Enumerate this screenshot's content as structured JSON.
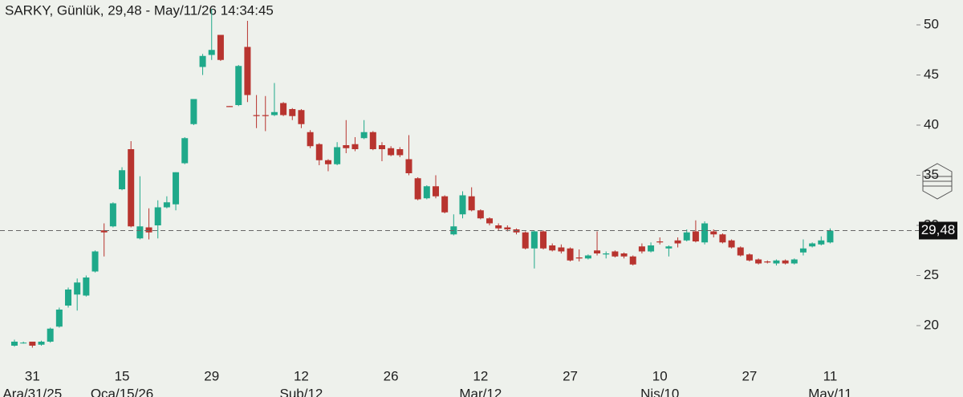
{
  "chart_data": {
    "type": "candlestick",
    "title": "SARKY,  Günlük, 29,48 - May/11/26 14:34:45",
    "categories": [
      null,
      null,
      "31",
      null,
      null,
      null,
      null,
      null,
      null,
      null,
      null,
      null,
      "15",
      null,
      null,
      null,
      null,
      null,
      null,
      null,
      null,
      null,
      "29",
      null,
      null,
      null,
      null,
      null,
      null,
      null,
      null,
      null,
      "12",
      null,
      null,
      null,
      null,
      null,
      null,
      null,
      null,
      null,
      "26",
      null,
      null,
      null,
      null,
      null,
      null,
      null,
      null,
      null,
      "12",
      null,
      null,
      null,
      null,
      null,
      null,
      null,
      null,
      null,
      "27",
      null,
      null,
      null,
      null,
      null,
      null,
      null,
      null,
      null,
      "10",
      null,
      null,
      null,
      null,
      null,
      null,
      null,
      null,
      null,
      "27",
      null,
      null,
      null,
      null,
      null,
      null,
      null,
      null,
      "11"
    ],
    "category_months": [
      null,
      null,
      "Ara/31/25",
      null,
      null,
      null,
      null,
      null,
      null,
      null,
      null,
      null,
      "Oca/15/26",
      null,
      null,
      null,
      null,
      null,
      null,
      null,
      null,
      null,
      null,
      null,
      null,
      null,
      null,
      null,
      null,
      null,
      null,
      null,
      "Şub/12",
      null,
      null,
      null,
      null,
      null,
      null,
      null,
      null,
      null,
      null,
      null,
      null,
      null,
      null,
      null,
      null,
      null,
      null,
      null,
      "Mar/12",
      null,
      null,
      null,
      null,
      null,
      null,
      null,
      null,
      null,
      null,
      null,
      null,
      null,
      null,
      null,
      null,
      null,
      null,
      null,
      "Nis/10",
      null,
      null,
      null,
      null,
      null,
      null,
      null,
      null,
      null,
      null,
      null,
      null,
      null,
      null,
      null,
      null,
      null,
      null,
      "May/11"
    ],
    "open": [
      18.0,
      18.3,
      18.4,
      18.1,
      18.4,
      19.9,
      22.0,
      23.1,
      23.0,
      25.4,
      29.5,
      29.9,
      33.6,
      37.6,
      28.7,
      29.8,
      30.0,
      31.8,
      32.1,
      36.2,
      40.1,
      45.8,
      47.0,
      49.0,
      41.9,
      42.0,
      47.8,
      41.0,
      41.0,
      41.0,
      42.2,
      41.6,
      41.5,
      39.3,
      38.1,
      36.5,
      36.1,
      38.0,
      38.1,
      38.7,
      39.3,
      38.0,
      37.7,
      37.6,
      36.6,
      34.7,
      32.7,
      33.9,
      32.9,
      29.1,
      31.1,
      32.9,
      31.5,
      30.7,
      30.0,
      29.8,
      29.6,
      29.3,
      27.7,
      29.4,
      28.0,
      27.8,
      27.7,
      26.8,
      26.7,
      27.5,
      27.1,
      27.4,
      27.2,
      26.9,
      27.9,
      27.4,
      28.4,
      27.7,
      28.5,
      28.5,
      29.4,
      28.3,
      29.4,
      29.1,
      28.5,
      27.8,
      27.1,
      26.6,
      26.4,
      26.2,
      26.5,
      26.2,
      27.3,
      27.9,
      28.1,
      28.3
    ],
    "high": [
      18.6,
      18.4,
      18.4,
      18.5,
      19.8,
      21.8,
      23.8,
      24.7,
      25.0,
      27.5,
      30.2,
      32.3,
      35.8,
      38.4,
      34.9,
      31.7,
      32.5,
      32.9,
      35.3,
      38.8,
      42.6,
      47.1,
      51.6,
      49.0,
      41.9,
      46.0,
      50.4,
      43.0,
      42.9,
      44.2,
      42.3,
      41.7,
      41.6,
      39.5,
      38.2,
      36.6,
      38.3,
      40.5,
      38.8,
      40.5,
      39.4,
      38.3,
      37.9,
      37.8,
      39.0,
      34.8,
      34.0,
      35.0,
      33.0,
      31.1,
      33.4,
      33.8,
      31.6,
      30.8,
      30.2,
      30.0,
      29.7,
      29.4,
      29.5,
      29.5,
      28.2,
      28.1,
      27.8,
      27.6,
      27.1,
      29.4,
      27.4,
      27.5,
      27.3,
      27.0,
      28.2,
      28.3,
      28.8,
      28.0,
      28.8,
      29.6,
      30.5,
      30.4,
      29.6,
      29.2,
      28.6,
      27.9,
      27.2,
      26.7,
      26.5,
      26.6,
      26.6,
      26.7,
      28.6,
      28.3,
      28.9,
      29.7
    ],
    "low": [
      17.9,
      18.2,
      17.8,
      18.0,
      18.3,
      19.8,
      21.8,
      21.5,
      22.9,
      25.3,
      26.9,
      29.8,
      33.5,
      29.8,
      28.6,
      28.6,
      28.7,
      31.7,
      31.5,
      36.1,
      40.0,
      45.0,
      46.5,
      46.4,
      41.8,
      41.9,
      42.3,
      39.7,
      39.4,
      40.9,
      40.9,
      40.5,
      39.7,
      37.7,
      36.0,
      35.4,
      36.0,
      37.2,
      37.4,
      38.6,
      37.5,
      36.4,
      36.9,
      36.8,
      35.0,
      32.5,
      32.6,
      32.7,
      31.2,
      29.0,
      30.7,
      31.4,
      30.6,
      30.0,
      29.5,
      29.4,
      29.1,
      27.6,
      25.7,
      27.6,
      27.4,
      27.2,
      26.4,
      26.4,
      26.6,
      27.0,
      26.7,
      26.8,
      26.7,
      26.0,
      27.2,
      27.3,
      28.1,
      26.9,
      27.8,
      28.4,
      28.3,
      28.1,
      28.8,
      28.2,
      27.7,
      26.9,
      26.4,
      26.1,
      26.2,
      26.0,
      26.1,
      26.1,
      27.0,
      27.8,
      28.0,
      28.2
    ],
    "close": [
      18.4,
      18.3,
      18.0,
      18.4,
      19.7,
      21.6,
      23.6,
      24.3,
      24.8,
      27.4,
      29.3,
      32.2,
      35.5,
      29.9,
      29.9,
      29.3,
      31.8,
      32.3,
      35.3,
      38.7,
      42.6,
      46.9,
      47.5,
      46.5,
      41.8,
      45.9,
      43.0,
      40.9,
      40.9,
      41.3,
      41.0,
      40.9,
      40.1,
      37.9,
      36.5,
      36.1,
      37.8,
      37.7,
      37.6,
      39.3,
      37.6,
      37.6,
      37.0,
      37.0,
      35.2,
      32.6,
      33.9,
      32.9,
      31.3,
      29.9,
      33.0,
      31.5,
      30.7,
      30.2,
      29.7,
      29.6,
      29.3,
      27.7,
      29.4,
      27.7,
      27.5,
      27.4,
      26.5,
      26.7,
      27.0,
      27.2,
      27.2,
      26.9,
      26.9,
      26.1,
      27.4,
      28.0,
      28.3,
      27.9,
      28.2,
      29.3,
      28.4,
      30.2,
      29.1,
      28.3,
      27.8,
      27.0,
      26.5,
      26.2,
      26.3,
      26.5,
      26.2,
      26.6,
      27.7,
      28.2,
      28.5,
      29.48
    ],
    "up_color": "#1fa98a",
    "down_color": "#b8342f",
    "ylim": [
      16.08,
      52.48
    ],
    "yticks": [
      20,
      25,
      30,
      35,
      40,
      45,
      50
    ],
    "last_price": {
      "value": 29.48,
      "label": "29,48"
    }
  }
}
